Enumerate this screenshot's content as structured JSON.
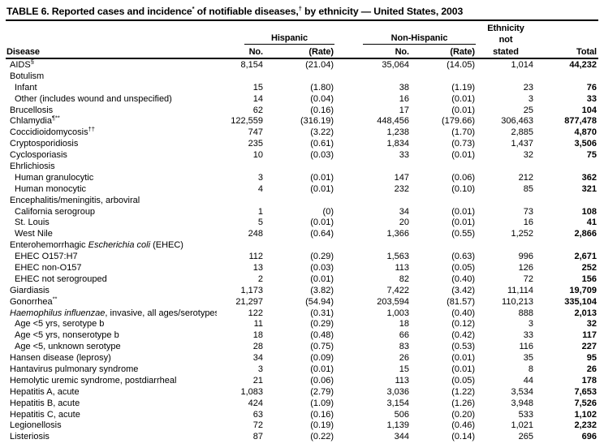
{
  "title": {
    "part1": "TABLE 6. Reported cases and incidence",
    "sup1": "*",
    "part2": " of notifiable diseases,",
    "sup2": "†",
    "part3": " by ethnicity — United States, 2003"
  },
  "header": {
    "disease": "Disease",
    "hispanic": "Hispanic",
    "non_hispanic": "Non-Hispanic",
    "ethnicity_line1": "Ethnicity",
    "ethnicity_line2": "not",
    "ethnicity_line3": "stated",
    "no": "No.",
    "rate": "(Rate)",
    "total": "Total"
  },
  "table": {
    "rows": [
      {
        "pre": "AIDS",
        "italic": "",
        "post": "",
        "sup": "§",
        "indent": 0,
        "values": [
          "8,154",
          "(21.04)",
          "35,064",
          "(14.05)",
          "1,014",
          "44,232"
        ]
      },
      {
        "pre": "Botulism",
        "italic": "",
        "post": "",
        "sup": "",
        "indent": 0,
        "values": []
      },
      {
        "pre": "Infant",
        "italic": "",
        "post": "",
        "sup": "",
        "indent": 1,
        "values": [
          "15",
          "(1.80)",
          "38",
          "(1.19)",
          "23",
          "76"
        ]
      },
      {
        "pre": "Other (includes wound and unspecified)",
        "italic": "",
        "post": "",
        "sup": "",
        "indent": 1,
        "values": [
          "14",
          "(0.04)",
          "16",
          "(0.01)",
          "3",
          "33"
        ]
      },
      {
        "pre": "Brucellosis",
        "italic": "",
        "post": "",
        "sup": "",
        "indent": 0,
        "values": [
          "62",
          "(0.16)",
          "17",
          "(0.01)",
          "25",
          "104"
        ]
      },
      {
        "pre": "Chlamydia",
        "italic": "",
        "post": "",
        "sup": "¶**",
        "indent": 0,
        "values": [
          "122,559",
          "(316.19)",
          "448,456",
          "(179.66)",
          "306,463",
          "877,478"
        ]
      },
      {
        "pre": "Coccidioidomycosis",
        "italic": "",
        "post": "",
        "sup": "††",
        "indent": 0,
        "values": [
          "747",
          "(3.22)",
          "1,238",
          "(1.70)",
          "2,885",
          "4,870"
        ]
      },
      {
        "pre": "Cryptosporidiosis",
        "italic": "",
        "post": "",
        "sup": "",
        "indent": 0,
        "values": [
          "235",
          "(0.61)",
          "1,834",
          "(0.73)",
          "1,437",
          "3,506"
        ]
      },
      {
        "pre": "Cyclosporiasis",
        "italic": "",
        "post": "",
        "sup": "",
        "indent": 0,
        "values": [
          "10",
          "(0.03)",
          "33",
          "(0.01)",
          "32",
          "75"
        ]
      },
      {
        "pre": "Ehrlichiosis",
        "italic": "",
        "post": "",
        "sup": "",
        "indent": 0,
        "values": []
      },
      {
        "pre": "Human granulocytic",
        "italic": "",
        "post": "",
        "sup": "",
        "indent": 1,
        "values": [
          "3",
          "(0.01)",
          "147",
          "(0.06)",
          "212",
          "362"
        ]
      },
      {
        "pre": "Human monocytic",
        "italic": "",
        "post": "",
        "sup": "",
        "indent": 1,
        "values": [
          "4",
          "(0.01)",
          "232",
          "(0.10)",
          "85",
          "321"
        ]
      },
      {
        "pre": "Encephalitis/meningitis, arboviral",
        "italic": "",
        "post": "",
        "sup": "",
        "indent": 0,
        "values": []
      },
      {
        "pre": "California serogroup",
        "italic": "",
        "post": "",
        "sup": "",
        "indent": 1,
        "values": [
          "1",
          "(0)",
          "34",
          "(0.01)",
          "73",
          "108"
        ]
      },
      {
        "pre": "St. Louis",
        "italic": "",
        "post": "",
        "sup": "",
        "indent": 1,
        "values": [
          "5",
          "(0.01)",
          "20",
          "(0.01)",
          "16",
          "41"
        ]
      },
      {
        "pre": "West Nile",
        "italic": "",
        "post": "",
        "sup": "",
        "indent": 1,
        "values": [
          "248",
          "(0.64)",
          "1,366",
          "(0.55)",
          "1,252",
          "2,866"
        ]
      },
      {
        "pre": "Enterohemorrhagic ",
        "italic": "Escherichia coli",
        "post": " (EHEC)",
        "sup": "",
        "indent": 0,
        "values": []
      },
      {
        "pre": "EHEC O157:H7",
        "italic": "",
        "post": "",
        "sup": "",
        "indent": 1,
        "values": [
          "112",
          "(0.29)",
          "1,563",
          "(0.63)",
          "996",
          "2,671"
        ]
      },
      {
        "pre": "EHEC non-O157",
        "italic": "",
        "post": "",
        "sup": "",
        "indent": 1,
        "values": [
          "13",
          "(0.03)",
          "113",
          "(0.05)",
          "126",
          "252"
        ]
      },
      {
        "pre": "EHEC not serogrouped",
        "italic": "",
        "post": "",
        "sup": "",
        "indent": 1,
        "values": [
          "2",
          "(0.01)",
          "82",
          "(0.40)",
          "72",
          "156"
        ]
      },
      {
        "pre": "Giardiasis",
        "italic": "",
        "post": "",
        "sup": "",
        "indent": 0,
        "values": [
          "1,173",
          "(3.82)",
          "7,422",
          "(3.42)",
          "11,114",
          "19,709"
        ]
      },
      {
        "pre": "Gonorrhea",
        "italic": "",
        "post": "",
        "sup": "**",
        "indent": 0,
        "values": [
          "21,297",
          "(54.94)",
          "203,594",
          "(81.57)",
          "110,213",
          "335,104"
        ]
      },
      {
        "pre": "",
        "italic": "Haemophilus influenzae",
        "post": ", invasive, all ages/serotypes",
        "sup": "",
        "indent": 0,
        "values": [
          "122",
          "(0.31)",
          "1,003",
          "(0.40)",
          "888",
          "2,013"
        ]
      },
      {
        "pre": "Age <5 yrs, serotype b",
        "italic": "",
        "post": "",
        "sup": "",
        "indent": 1,
        "values": [
          "11",
          "(0.29)",
          "18",
          "(0.12)",
          "3",
          "32"
        ]
      },
      {
        "pre": "Age <5 yrs, nonserotype b",
        "italic": "",
        "post": "",
        "sup": "",
        "indent": 1,
        "values": [
          "18",
          "(0.48)",
          "66",
          "(0.42)",
          "33",
          "117"
        ]
      },
      {
        "pre": "Age <5, unknown serotype",
        "italic": "",
        "post": "",
        "sup": "",
        "indent": 1,
        "values": [
          "28",
          "(0.75)",
          "83",
          "(0.53)",
          "116",
          "227"
        ]
      },
      {
        "pre": "Hansen disease (leprosy)",
        "italic": "",
        "post": "",
        "sup": "",
        "indent": 0,
        "values": [
          "34",
          "(0.09)",
          "26",
          "(0.01)",
          "35",
          "95"
        ]
      },
      {
        "pre": "Hantavirus pulmonary syndrome",
        "italic": "",
        "post": "",
        "sup": "",
        "indent": 0,
        "values": [
          "3",
          "(0.01)",
          "15",
          "(0.01)",
          "8",
          "26"
        ]
      },
      {
        "pre": "Hemolytic uremic syndrome, postdiarrheal",
        "italic": "",
        "post": "",
        "sup": "",
        "indent": 0,
        "values": [
          "21",
          "(0.06)",
          "113",
          "(0.05)",
          "44",
          "178"
        ]
      },
      {
        "pre": "Hepatitis A, acute",
        "italic": "",
        "post": "",
        "sup": "",
        "indent": 0,
        "values": [
          "1,083",
          "(2.79)",
          "3,036",
          "(1.22)",
          "3,534",
          "7,653"
        ]
      },
      {
        "pre": "Hepatitis B, acute",
        "italic": "",
        "post": "",
        "sup": "",
        "indent": 0,
        "values": [
          "424",
          "(1.09)",
          "3,154",
          "(1.26)",
          "3,948",
          "7,526"
        ]
      },
      {
        "pre": "Hepatitis C, acute",
        "italic": "",
        "post": "",
        "sup": "",
        "indent": 0,
        "values": [
          "63",
          "(0.16)",
          "506",
          "(0.20)",
          "533",
          "1,102"
        ]
      },
      {
        "pre": "Legionellosis",
        "italic": "",
        "post": "",
        "sup": "",
        "indent": 0,
        "values": [
          "72",
          "(0.19)",
          "1,139",
          "(0.46)",
          "1,021",
          "2,232"
        ]
      },
      {
        "pre": "Listeriosis",
        "italic": "",
        "post": "",
        "sup": "",
        "indent": 0,
        "values": [
          "87",
          "(0.22)",
          "344",
          "(0.14)",
          "265",
          "696"
        ]
      }
    ]
  }
}
